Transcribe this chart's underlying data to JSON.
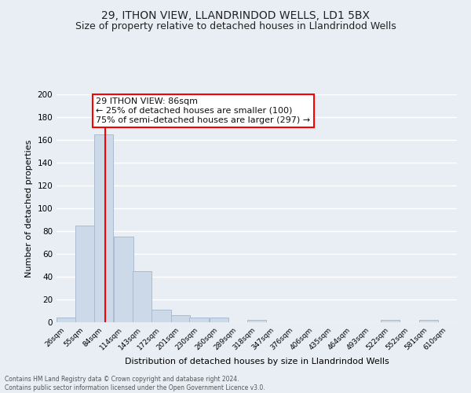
{
  "title1": "29, ITHON VIEW, LLANDRINDOD WELLS, LD1 5BX",
  "title2": "Size of property relative to detached houses in Llandrindod Wells",
  "xlabel": "Distribution of detached houses by size in Llandrindod Wells",
  "ylabel": "Number of detached properties",
  "footer1": "Contains HM Land Registry data © Crown copyright and database right 2024.",
  "footer2": "Contains public sector information licensed under the Open Government Licence v3.0.",
  "annotation_line1": "29 ITHON VIEW: 86sqm",
  "annotation_line2": "← 25% of detached houses are smaller (100)",
  "annotation_line3": "75% of semi-detached houses are larger (297) →",
  "bar_color": "#ccd9e8",
  "bar_edge_color": "#aabbd0",
  "red_line_x": 86,
  "categories": [
    "26sqm",
    "55sqm",
    "84sqm",
    "114sqm",
    "143sqm",
    "172sqm",
    "201sqm",
    "230sqm",
    "260sqm",
    "289sqm",
    "318sqm",
    "347sqm",
    "376sqm",
    "406sqm",
    "435sqm",
    "464sqm",
    "493sqm",
    "522sqm",
    "552sqm",
    "581sqm",
    "610sqm"
  ],
  "bin_edges": [
    11.5,
    40.5,
    69.5,
    98.5,
    128.5,
    157.5,
    186.5,
    215.5,
    245.5,
    274.5,
    303.5,
    332.5,
    361.5,
    390.5,
    420.5,
    449.5,
    478.5,
    507.5,
    536.5,
    566.5,
    595.5,
    624.5
  ],
  "bin_centers": [
    26,
    55,
    84,
    114,
    143,
    172,
    201,
    230,
    260,
    289,
    318,
    347,
    376,
    406,
    435,
    464,
    493,
    522,
    552,
    581,
    610
  ],
  "values": [
    4,
    85,
    165,
    75,
    45,
    11,
    6,
    4,
    4,
    0,
    2,
    0,
    0,
    0,
    0,
    0,
    0,
    2,
    0,
    2,
    0
  ],
  "ylim": [
    0,
    200
  ],
  "yticks": [
    0,
    20,
    40,
    60,
    80,
    100,
    120,
    140,
    160,
    180,
    200
  ],
  "background_color": "#e8eef4",
  "plot_bg_color": "#e8eef4",
  "grid_color": "#ffffff",
  "title_fontsize": 10,
  "subtitle_fontsize": 9,
  "annotation_fontsize": 8
}
